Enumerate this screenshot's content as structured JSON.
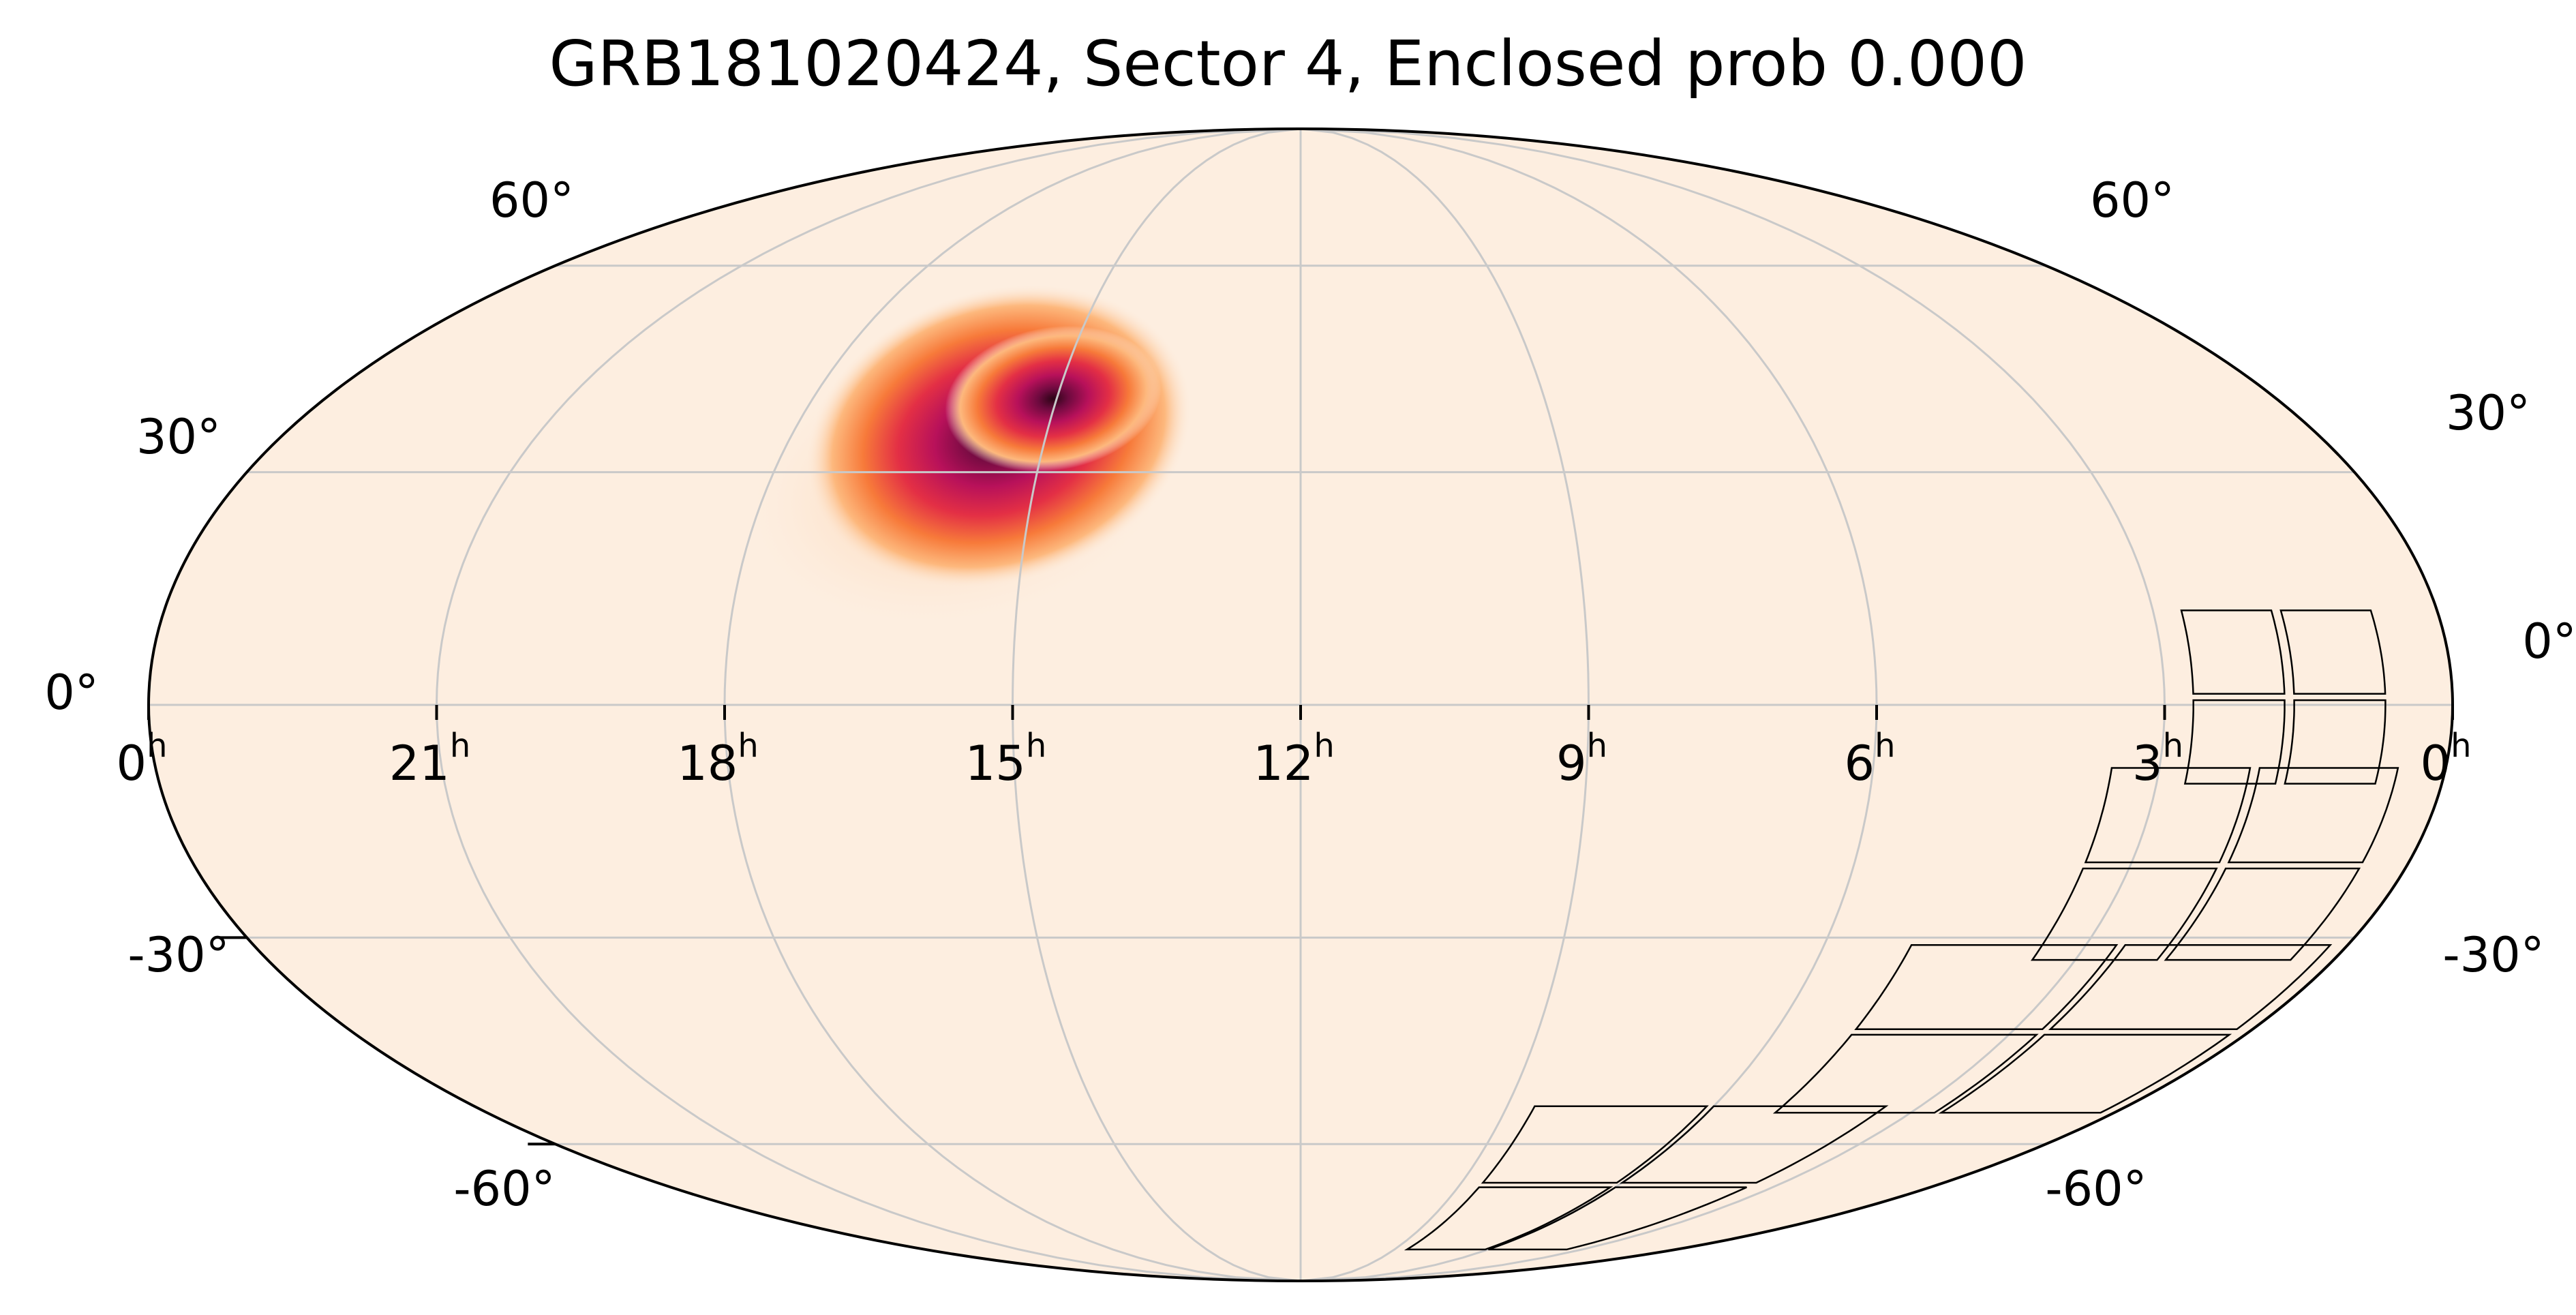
{
  "title": "GRB181020424, Sector 4, Enclosed prob 0.000",
  "chart_data": {
    "type": "heatmap",
    "projection": "mollweide",
    "title": "GRB181020424, Sector 4, Enclosed prob 0.000",
    "colormap": "reddish-orange on cream",
    "background_color": "#fdeee0",
    "grid": true,
    "ra_tick_labels": [
      "0h",
      "21h",
      "18h",
      "15h",
      "12h",
      "9h",
      "6h",
      "3h",
      "0h"
    ],
    "ra_tick_values_hours": [
      24,
      21,
      18,
      15,
      12,
      9,
      6,
      3,
      0
    ],
    "dec_tick_labels_left": [
      "60°",
      "30°",
      "0°",
      "-30°",
      "-60°"
    ],
    "dec_tick_labels_right": [
      "60°",
      "30°",
      "0°",
      "-30°",
      "-60°"
    ],
    "dec_tick_values_deg": [
      60,
      30,
      0,
      -30,
      -60
    ],
    "localization": {
      "peak_ra_hours": 14.8,
      "peak_dec_deg": 36,
      "colors": [
        "#fdeee0",
        "#fdb87d",
        "#f77a3a",
        "#e32f45",
        "#b8115a",
        "#6e0a3f",
        "#2b0415"
      ]
    },
    "sector_outline": {
      "label": "Sector 4",
      "cameras": [
        {
          "ra_hours": [
            0.7,
            2.7
          ],
          "dec_deg": [
            -10,
            12
          ],
          "bands": 2
        },
        {
          "ra_hours": [
            0.5,
            3.5
          ],
          "dec_deg": [
            -33,
            -8
          ]
        },
        {
          "ra_hours": [
            0.2,
            5.0
          ],
          "dec_deg": [
            -55,
            -31
          ]
        },
        {
          "ra_hours": [
            3.5,
            8.6
          ],
          "dec_deg": [
            -80,
            -54
          ]
        }
      ]
    },
    "enclosed_prob": 0.0
  }
}
